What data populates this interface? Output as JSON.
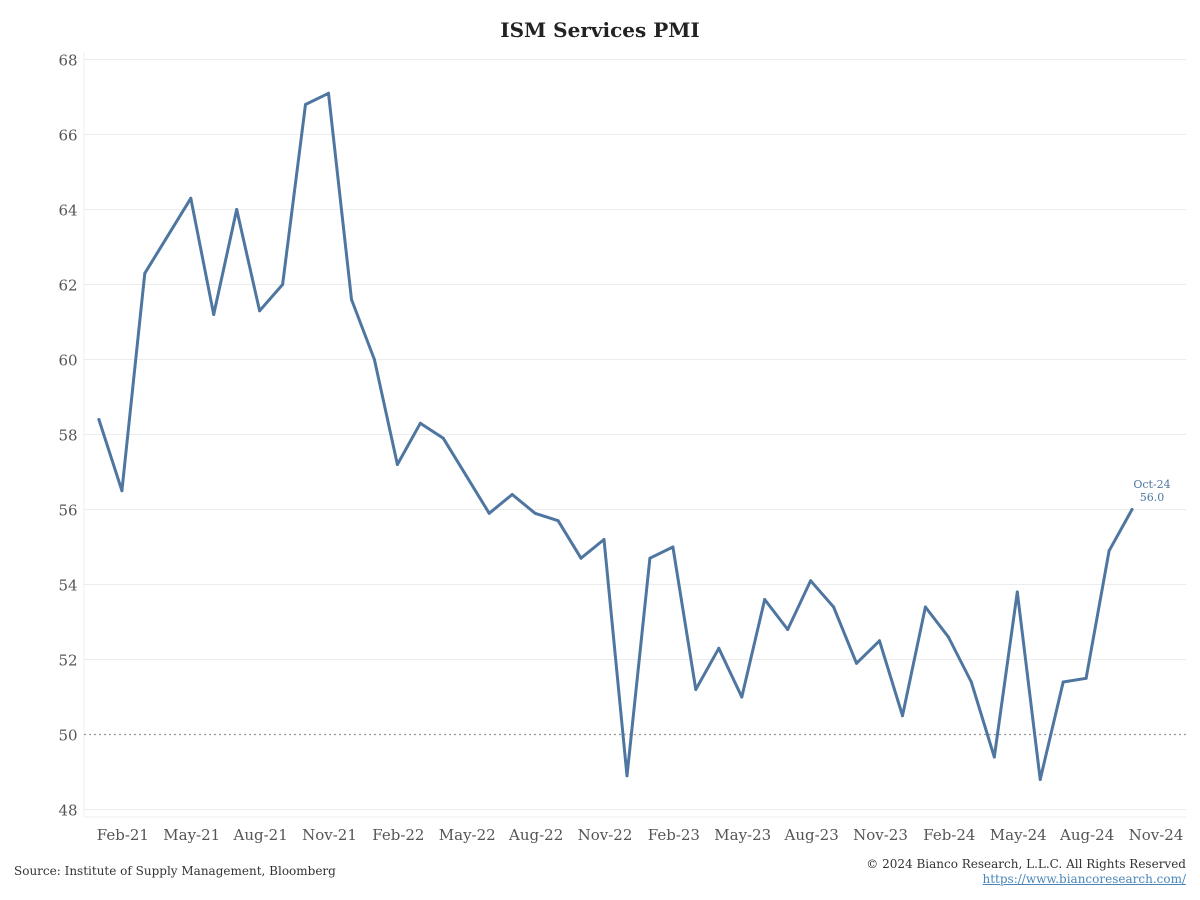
{
  "chart_data": {
    "type": "line",
    "title": "ISM Services PMI",
    "xlabel": "",
    "ylabel": "",
    "ylim": [
      47.8,
      68.2
    ],
    "yticks": [
      48,
      50,
      52,
      54,
      56,
      58,
      60,
      62,
      64,
      66,
      68
    ],
    "x_tick_labels": [
      "Feb-21",
      "May-21",
      "Aug-21",
      "Nov-21",
      "Feb-22",
      "May-22",
      "Aug-22",
      "Nov-22",
      "Feb-23",
      "May-23",
      "Aug-23",
      "Nov-23",
      "Feb-24",
      "May-24",
      "Aug-24",
      "Nov-24"
    ],
    "x_range": [
      "Dec-20",
      "Dec-24"
    ],
    "reference_line": 50,
    "grid": "horizontal",
    "series": [
      {
        "color": "#4e76a0",
        "x": [
          "Jan-21",
          "Feb-21",
          "Mar-21",
          "Apr-21",
          "May-21",
          "Jun-21",
          "Jul-21",
          "Aug-21",
          "Sep-21",
          "Oct-21",
          "Nov-21",
          "Dec-21",
          "Jan-22",
          "Feb-22",
          "Mar-22",
          "Apr-22",
          "May-22",
          "Jun-22",
          "Jul-22",
          "Aug-22",
          "Sep-22",
          "Oct-22",
          "Nov-22",
          "Dec-22",
          "Jan-23",
          "Feb-23",
          "Mar-23",
          "Apr-23",
          "May-23",
          "Jun-23",
          "Jul-23",
          "Aug-23",
          "Sep-23",
          "Oct-23",
          "Nov-23",
          "Dec-23",
          "Jan-24",
          "Feb-24",
          "Mar-24",
          "Apr-24",
          "May-24",
          "Jun-24",
          "Jul-24",
          "Aug-24",
          "Sep-24",
          "Oct-24"
        ],
        "values": [
          58.4,
          56.5,
          62.3,
          63.3,
          64.3,
          61.2,
          64.0,
          61.3,
          62.0,
          66.8,
          67.1,
          61.6,
          60.0,
          57.2,
          58.3,
          57.9,
          56.9,
          55.9,
          56.4,
          55.9,
          55.7,
          54.7,
          55.2,
          48.9,
          54.7,
          55.0,
          51.2,
          52.3,
          51.0,
          53.6,
          52.8,
          54.1,
          53.4,
          51.9,
          52.5,
          50.5,
          53.4,
          52.6,
          51.4,
          49.4,
          53.8,
          48.8,
          51.4,
          51.5,
          54.9,
          56.0
        ]
      }
    ],
    "annotation": {
      "label": "Oct-24",
      "value": "56.0"
    }
  },
  "footer": {
    "source": "Source: Institute of Supply Management, Bloomberg",
    "copyright": "© 2024 Bianco Research, L.L.C. All Rights Reserved",
    "url": "https://www.biancoresearch.com/"
  },
  "colors": {
    "line": "#4e76a0",
    "annotation": "#4e76a0",
    "grid": "#ececec",
    "axis_text": "#555555"
  }
}
